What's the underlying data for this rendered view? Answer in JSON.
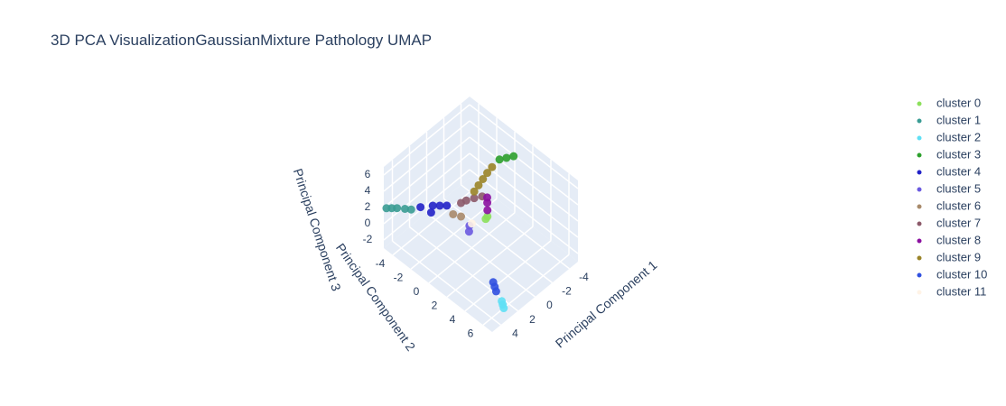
{
  "chart_data": {
    "type": "scatter3d",
    "title": "3D PCA VisualizationGaussianMixture Pathology UMAP",
    "x_label": "Principal Component 1",
    "y_label": "Principal Component 2",
    "z_label": "Principal Component 3",
    "xlim": [
      -5,
      5
    ],
    "ylim": [
      -5,
      7
    ],
    "zlim": [
      -3,
      7
    ],
    "xticks": [
      -4,
      -2,
      0,
      2,
      4
    ],
    "yticks": [
      -4,
      -2,
      0,
      2,
      4,
      6
    ],
    "zticks": [
      -2,
      0,
      2,
      4,
      6
    ],
    "grid": true,
    "legend": "right",
    "series": [
      {
        "name": "cluster 0",
        "color": "#8ce05c",
        "x": [
          -1.4,
          -1.3
        ],
        "y": [
          0.4,
          0.3
        ],
        "z": [
          0,
          -0.3
        ]
      },
      {
        "name": "cluster 1",
        "color": "#3a9c94",
        "x": [
          4.9,
          4.6,
          4.3,
          3.9,
          3.6
        ],
        "y": [
          -4.8,
          -4.5,
          -4.2,
          -3.7,
          -3.3
        ],
        "z": [
          2,
          2,
          2,
          2,
          2
        ]
      },
      {
        "name": "cluster 2",
        "color": "#5fe0f5",
        "x": [
          2.2,
          2.4,
          2.6
        ],
        "y": [
          5.4,
          5.7,
          6.0
        ],
        "z": [
          -3,
          -3,
          -3
        ]
      },
      {
        "name": "cluster 3",
        "color": "#2ca02c",
        "x": [
          -3.6,
          -3.2,
          -2.8
        ],
        "y": [
          1.2,
          0.8,
          0.4
        ],
        "z": [
          6.2,
          6,
          5.8
        ]
      },
      {
        "name": "cluster 4",
        "color": "#2222c8",
        "x": [
          2.3,
          1.8,
          1.5,
          1.1,
          0.7
        ],
        "y": [
          -3.5,
          -2.8,
          -2.9,
          -2.5,
          -2.1
        ],
        "z": [
          1,
          0.5,
          1,
          1,
          1
        ]
      },
      {
        "name": "cluster 5",
        "color": "#6a5ae0",
        "x": [
          -0.3,
          -0.2
        ],
        "y": [
          -0.55,
          -0.5
        ],
        "z": [
          -1,
          -1.6
        ]
      },
      {
        "name": "cluster 6",
        "color": "#a88a6a",
        "x": [
          0.1,
          0.5
        ],
        "y": [
          -1.1,
          -1.6
        ],
        "z": [
          0,
          0.2
        ]
      },
      {
        "name": "cluster 7",
        "color": "#8c5a6a",
        "x": [
          0,
          -0.3,
          -0.8,
          -1.2
        ],
        "y": [
          -1.2,
          -0.9,
          -0.5,
          0
        ],
        "z": [
          1.5,
          1.8,
          2,
          2.3
        ]
      },
      {
        "name": "cluster 8",
        "color": "#8b10a0",
        "x": [
          -2,
          -1.8,
          -1.5
        ],
        "y": [
          -0.2,
          0,
          0.3
        ],
        "z": [
          1.3,
          1,
          0.6
        ]
      },
      {
        "name": "cluster 9",
        "color": "#9a8428",
        "x": [
          -0.7,
          -1.1,
          -1.5,
          -1.9,
          -2.3
        ],
        "y": [
          -0.4,
          -0.3,
          -0.2,
          -0.1,
          0.05
        ],
        "z": [
          3,
          3.5,
          4,
          4.5,
          5
        ]
      },
      {
        "name": "cluster 10",
        "color": "#3050e0",
        "x": [
          1.3,
          1.55,
          1.8
        ],
        "y": [
          3.6,
          4.0,
          4.4
        ],
        "z": [
          -3,
          -3,
          -3
        ]
      },
      {
        "name": "cluster 11",
        "color": "#fff3e6",
        "x": [
          0
        ],
        "y": [
          0
        ],
        "z": [
          0
        ]
      }
    ]
  }
}
